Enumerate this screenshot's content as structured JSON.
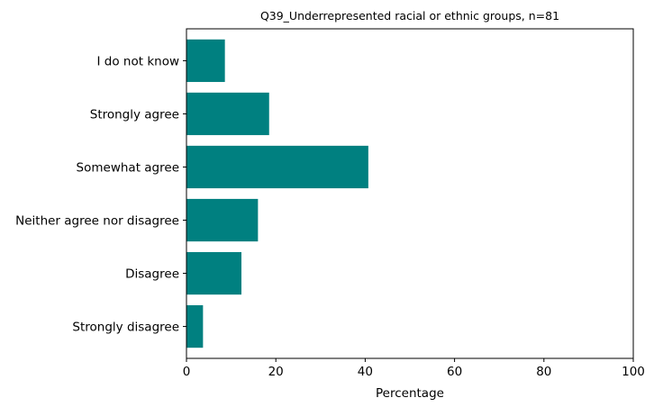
{
  "chart_data": {
    "type": "bar",
    "orientation": "horizontal",
    "title": "Q39_Underrepresented racial or ethnic groups, n=81",
    "xlabel": "Percentage",
    "ylabel": "",
    "categories": [
      "Strongly disagree",
      "Disagree",
      "Neither agree nor disagree",
      "Somewhat agree",
      "Strongly agree",
      "I do not know"
    ],
    "values": [
      3.7,
      12.3,
      16.0,
      40.7,
      18.5,
      8.6
    ],
    "xlim": [
      0,
      100
    ],
    "xticks": [
      "0",
      "20",
      "40",
      "60",
      "80",
      "100"
    ],
    "grid": false,
    "bar_color": "#008080"
  }
}
